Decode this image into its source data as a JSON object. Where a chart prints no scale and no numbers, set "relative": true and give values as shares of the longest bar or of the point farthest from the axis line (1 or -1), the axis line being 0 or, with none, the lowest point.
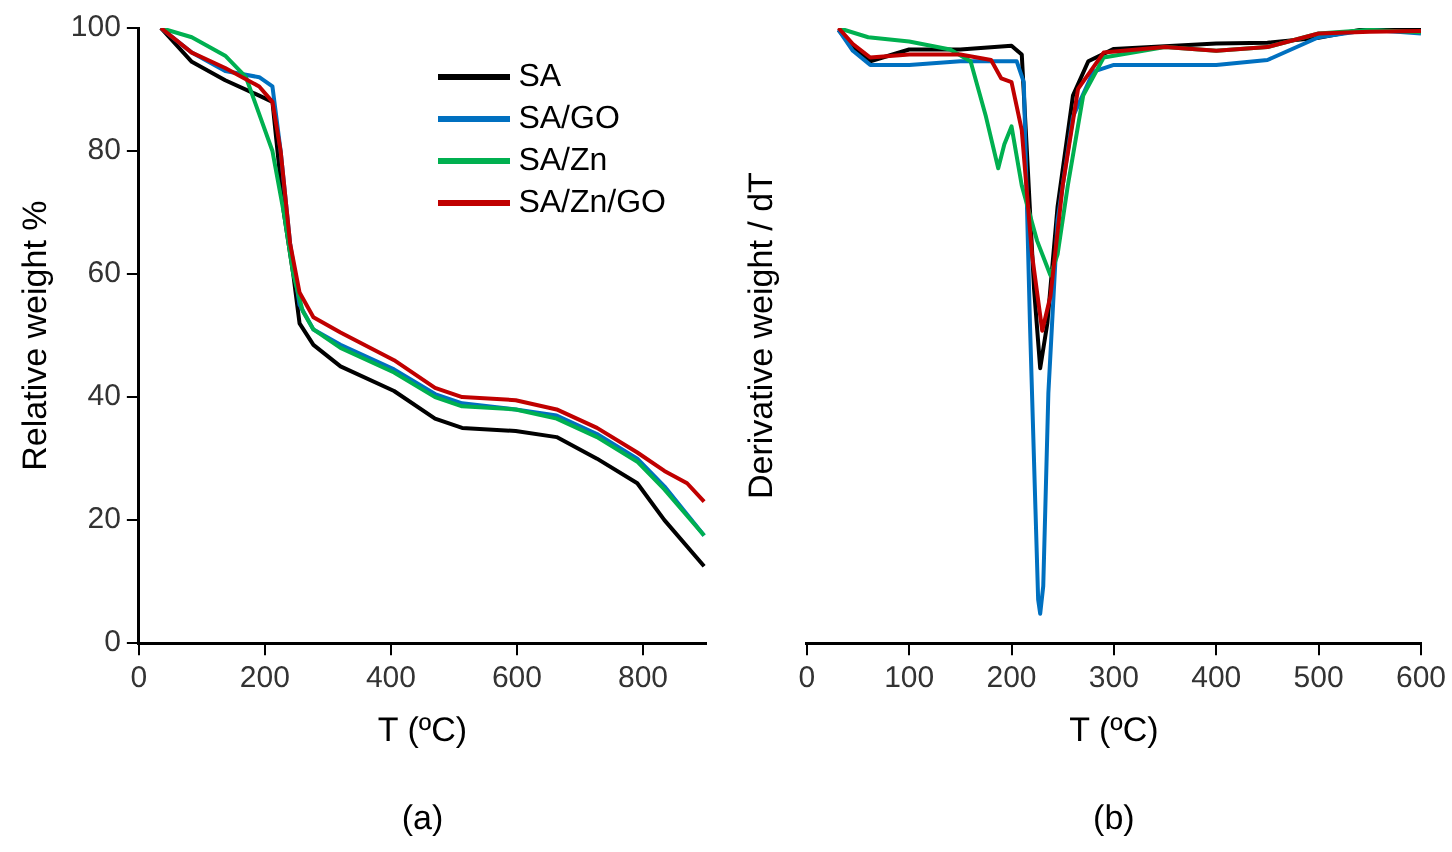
{
  "chart_data": [
    {
      "type": "line",
      "xlabel": "T (ºC)",
      "ylabel": "Relative weight %",
      "annotations": [
        "(a)"
      ],
      "xlim": [
        0,
        900
      ],
      "xticks": [
        0,
        200,
        400,
        600,
        800
      ],
      "ylim": [
        0,
        100
      ],
      "yticks": [
        0,
        20,
        40,
        60,
        80,
        100
      ],
      "grid": false,
      "legend": "top right",
      "marker": "none",
      "line_style": "solid",
      "series": [
        {
          "name": "SA",
          "color": "#000000",
          "x": [
            35,
            84,
            137,
            191,
            212,
            230,
            245,
            255,
            277,
            320,
            405,
            470,
            513,
            598,
            663,
            727,
            791,
            834,
            897
          ],
          "values": [
            100,
            94.5,
            91.5,
            89,
            88,
            70,
            60,
            52,
            48.5,
            45,
            41,
            36.5,
            35,
            34.5,
            33.5,
            30,
            26,
            20,
            12.5
          ]
        },
        {
          "name": "SA/GO",
          "color": "#0070c0",
          "x": [
            35,
            84,
            137,
            191,
            212,
            225,
            240,
            255,
            277,
            320,
            405,
            470,
            513,
            598,
            663,
            727,
            791,
            834,
            897
          ],
          "values": [
            100,
            96,
            93,
            92,
            90.5,
            80,
            65,
            55,
            51,
            48.5,
            44.5,
            40.5,
            39,
            38,
            37,
            34,
            30,
            25.5,
            17.5
          ]
        },
        {
          "name": "SA/Zn",
          "color": "#00b050",
          "x": [
            35,
            84,
            137,
            170,
            191,
            212,
            230,
            245,
            260,
            277,
            320,
            405,
            470,
            513,
            598,
            663,
            727,
            791,
            834,
            897
          ],
          "values": [
            100,
            98.5,
            95.5,
            92,
            86,
            80,
            70,
            60,
            54,
            51,
            48,
            44,
            40,
            38.5,
            38,
            36.5,
            33.5,
            29.5,
            25,
            17.5
          ]
        },
        {
          "name": "SA/Zn/GO",
          "color": "#c00000",
          "x": [
            35,
            84,
            137,
            191,
            212,
            225,
            240,
            255,
            277,
            320,
            405,
            470,
            513,
            598,
            663,
            727,
            791,
            834,
            870,
            897
          ],
          "values": [
            100,
            96,
            93.5,
            90.5,
            88,
            80,
            65,
            57,
            53,
            50.5,
            46,
            41.5,
            40,
            39.5,
            38,
            35,
            31,
            28,
            26,
            23
          ]
        }
      ]
    },
    {
      "type": "line",
      "xlabel": "T (ºC)",
      "ylabel": "Derivative weight / dT",
      "annotations": [
        "(b)"
      ],
      "xlim": [
        0,
        600
      ],
      "xticks": [
        0,
        100,
        200,
        300,
        400,
        500,
        600
      ],
      "relative": true,
      "tick_labels": "x",
      "grid": false,
      "legend": false,
      "marker": "none",
      "line_style": "solid",
      "series": [
        {
          "color": "#000000",
          "x": [
            31,
            45,
            62,
            100,
            150,
            200,
            210,
            215,
            222,
            228,
            235,
            245,
            260,
            275,
            300,
            400,
            450,
            500,
            550,
            600
          ],
          "values": [
            0.997,
            0.969,
            0.946,
            0.965,
            0.965,
            0.971,
            0.957,
            0.8,
            0.576,
            0.447,
            0.52,
            0.71,
            0.89,
            0.946,
            0.966,
            0.975,
            0.976,
            0.984,
            1,
            1
          ]
        },
        {
          "color": "#0070c0",
          "x": [
            31,
            45,
            62,
            100,
            150,
            205,
            212,
            218,
            222,
            226,
            228,
            231,
            236,
            245,
            260,
            280,
            300,
            400,
            450,
            500,
            550,
            600
          ],
          "values": [
            0.997,
            0.963,
            0.94,
            0.94,
            0.946,
            0.946,
            0.912,
            0.52,
            0.295,
            0.071,
            0.048,
            0.093,
            0.407,
            0.688,
            0.856,
            0.929,
            0.94,
            0.94,
            0.948,
            0.985,
            0.997,
            0.991
          ]
        },
        {
          "color": "#00b050",
          "x": [
            31,
            60,
            100,
            140,
            160,
            175,
            187,
            193,
            200,
            210,
            225,
            238,
            245,
            255,
            270,
            290,
            350,
            400,
            450,
            500,
            550,
            600
          ],
          "values": [
            1,
            0.985,
            0.978,
            0.965,
            0.946,
            0.856,
            0.772,
            0.811,
            0.84,
            0.744,
            0.654,
            0.598,
            0.632,
            0.744,
            0.89,
            0.952,
            0.969,
            0.963,
            0.969,
            0.991,
            0.997,
            0.993
          ]
        },
        {
          "color": "#c00000",
          "x": [
            31,
            45,
            62,
            100,
            150,
            180,
            190,
            200,
            210,
            220,
            230,
            238,
            250,
            265,
            290,
            350,
            400,
            450,
            500,
            550,
            600
          ],
          "values": [
            1,
            0.974,
            0.952,
            0.957,
            0.957,
            0.948,
            0.918,
            0.912,
            0.834,
            0.632,
            0.508,
            0.564,
            0.744,
            0.901,
            0.96,
            0.969,
            0.963,
            0.969,
            0.991,
            0.994,
            0.995
          ]
        }
      ]
    }
  ]
}
